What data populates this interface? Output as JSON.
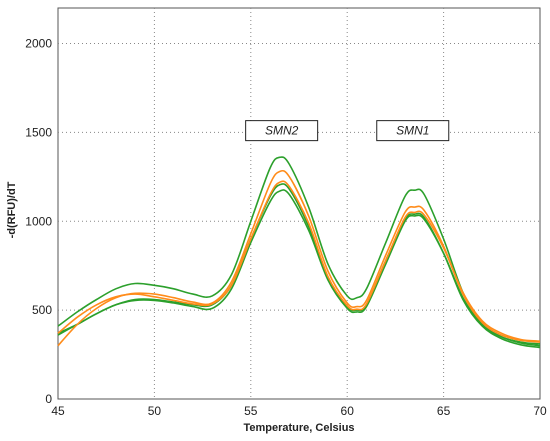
{
  "chart_data": {
    "type": "line",
    "xlabel": "Temperature, Celsius",
    "ylabel": "-d(RFU)/dT",
    "xlim": [
      45,
      70
    ],
    "ylim": [
      0,
      2200
    ],
    "x_ticks": [
      45,
      50,
      55,
      60,
      65,
      70
    ],
    "y_ticks": [
      0,
      500,
      1000,
      1500,
      2000
    ],
    "grid": true,
    "annotations": [
      {
        "text": "SMN2",
        "x": 56.6,
        "y": 1510
      },
      {
        "text": "SMN1",
        "x": 63.4,
        "y": 1510
      }
    ],
    "series": [
      {
        "color": "#2ca02c",
        "x": [
          45,
          46,
          47,
          48,
          49,
          50,
          51,
          52,
          53,
          54,
          55,
          56,
          56.5,
          57,
          58,
          59,
          60,
          60.5,
          61,
          62,
          63,
          63.5,
          64,
          65,
          66,
          67,
          68,
          69,
          70
        ],
        "y": [
          410,
          490,
          560,
          620,
          650,
          640,
          620,
          590,
          580,
          700,
          1000,
          1300,
          1360,
          1320,
          1080,
          760,
          580,
          570,
          620,
          880,
          1140,
          1175,
          1150,
          900,
          600,
          420,
          350,
          320,
          310
        ]
      },
      {
        "color": "#2ca02c",
        "x": [
          45,
          46,
          47,
          48,
          49,
          50,
          51,
          52,
          53,
          54,
          55,
          56,
          56.5,
          57,
          58,
          59,
          60,
          60.5,
          61,
          62,
          63,
          63.5,
          64,
          65,
          66,
          67,
          68,
          69,
          70
        ],
        "y": [
          370,
          420,
          480,
          530,
          560,
          560,
          545,
          530,
          530,
          640,
          900,
          1140,
          1205,
          1180,
          970,
          680,
          520,
          500,
          530,
          780,
          1010,
          1040,
          1020,
          820,
          560,
          410,
          340,
          305,
          290
        ]
      },
      {
        "color": "#2ca02c",
        "x": [
          45,
          46,
          47,
          48,
          49,
          50,
          51,
          52,
          53,
          54,
          55,
          56,
          56.5,
          57,
          58,
          59,
          60,
          60.5,
          61,
          62,
          63,
          63.5,
          64,
          65,
          66,
          67,
          68,
          69,
          70
        ],
        "y": [
          360,
          420,
          480,
          530,
          555,
          555,
          540,
          520,
          510,
          620,
          880,
          1110,
          1170,
          1150,
          950,
          670,
          510,
          490,
          520,
          760,
          1000,
          1030,
          1010,
          820,
          570,
          420,
          350,
          315,
          300
        ]
      },
      {
        "color": "#ff8c1a",
        "x": [
          45,
          46,
          47,
          48,
          49,
          50,
          51,
          52,
          53,
          54,
          55,
          56,
          56.5,
          57,
          58,
          59,
          60,
          60.5,
          61,
          62,
          63,
          63.5,
          64,
          65,
          66,
          67,
          68,
          69,
          70
        ],
        "y": [
          300,
          420,
          510,
          570,
          595,
          590,
          570,
          545,
          540,
          660,
          930,
          1210,
          1280,
          1250,
          1030,
          720,
          540,
          520,
          555,
          810,
          1050,
          1080,
          1060,
          860,
          590,
          430,
          360,
          330,
          320
        ]
      },
      {
        "color": "#ff8c1a",
        "x": [
          45,
          46,
          47,
          48,
          49,
          50,
          51,
          52,
          53,
          54,
          55,
          56,
          56.5,
          57,
          58,
          59,
          60,
          60.5,
          61,
          62,
          63,
          63.5,
          64,
          65,
          66,
          67,
          68,
          69,
          70
        ],
        "y": [
          370,
          460,
          530,
          575,
          590,
          575,
          555,
          535,
          535,
          640,
          900,
          1150,
          1220,
          1195,
          990,
          690,
          525,
          505,
          535,
          780,
          1020,
          1050,
          1035,
          850,
          600,
          440,
          370,
          335,
          325
        ]
      }
    ]
  }
}
